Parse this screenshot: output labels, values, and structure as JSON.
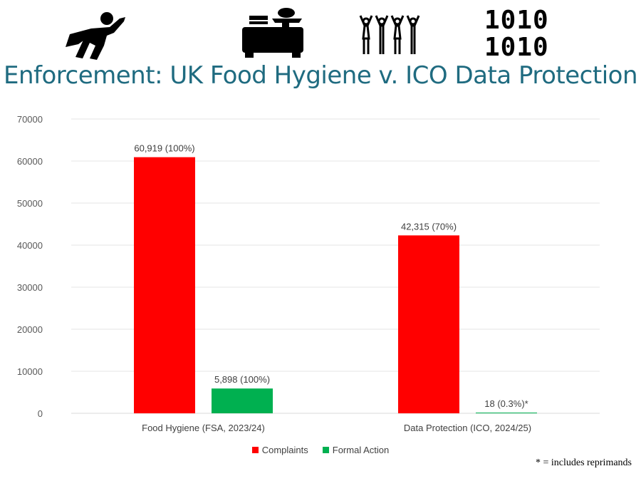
{
  "header": {
    "icons": [
      "superhero-icon",
      "food-scale-icon",
      "people-cheering-icon",
      "binary-data-icon"
    ],
    "binary_text": [
      "1010",
      "1010"
    ]
  },
  "footnote": "* = includes reprimands",
  "colors": {
    "complaints": "#ff0000",
    "formal_action": "#00b050",
    "title": "#1f6b80"
  },
  "chart_data": {
    "type": "bar",
    "title": "Enforcement: UK Food Hygiene v. ICO Data Protection",
    "categories": [
      "Food Hygiene (FSA, 2023/24)",
      "Data Protection (ICO, 2024/25)"
    ],
    "series": [
      {
        "name": "Complaints",
        "values": [
          60919,
          42315
        ],
        "labels": [
          "60,919 (100%)",
          "42,315 (70%)"
        ]
      },
      {
        "name": "Formal Action",
        "values": [
          5898,
          18
        ],
        "labels": [
          "5,898 (100%)",
          "18 (0.3%)*"
        ]
      }
    ],
    "ylim": [
      0,
      70000
    ],
    "yticks": [
      "0",
      "10000",
      "20000",
      "30000",
      "40000",
      "50000",
      "60000",
      "70000"
    ],
    "grid": true,
    "legend": "bottom-center",
    "xlabel": "",
    "ylabel": ""
  }
}
